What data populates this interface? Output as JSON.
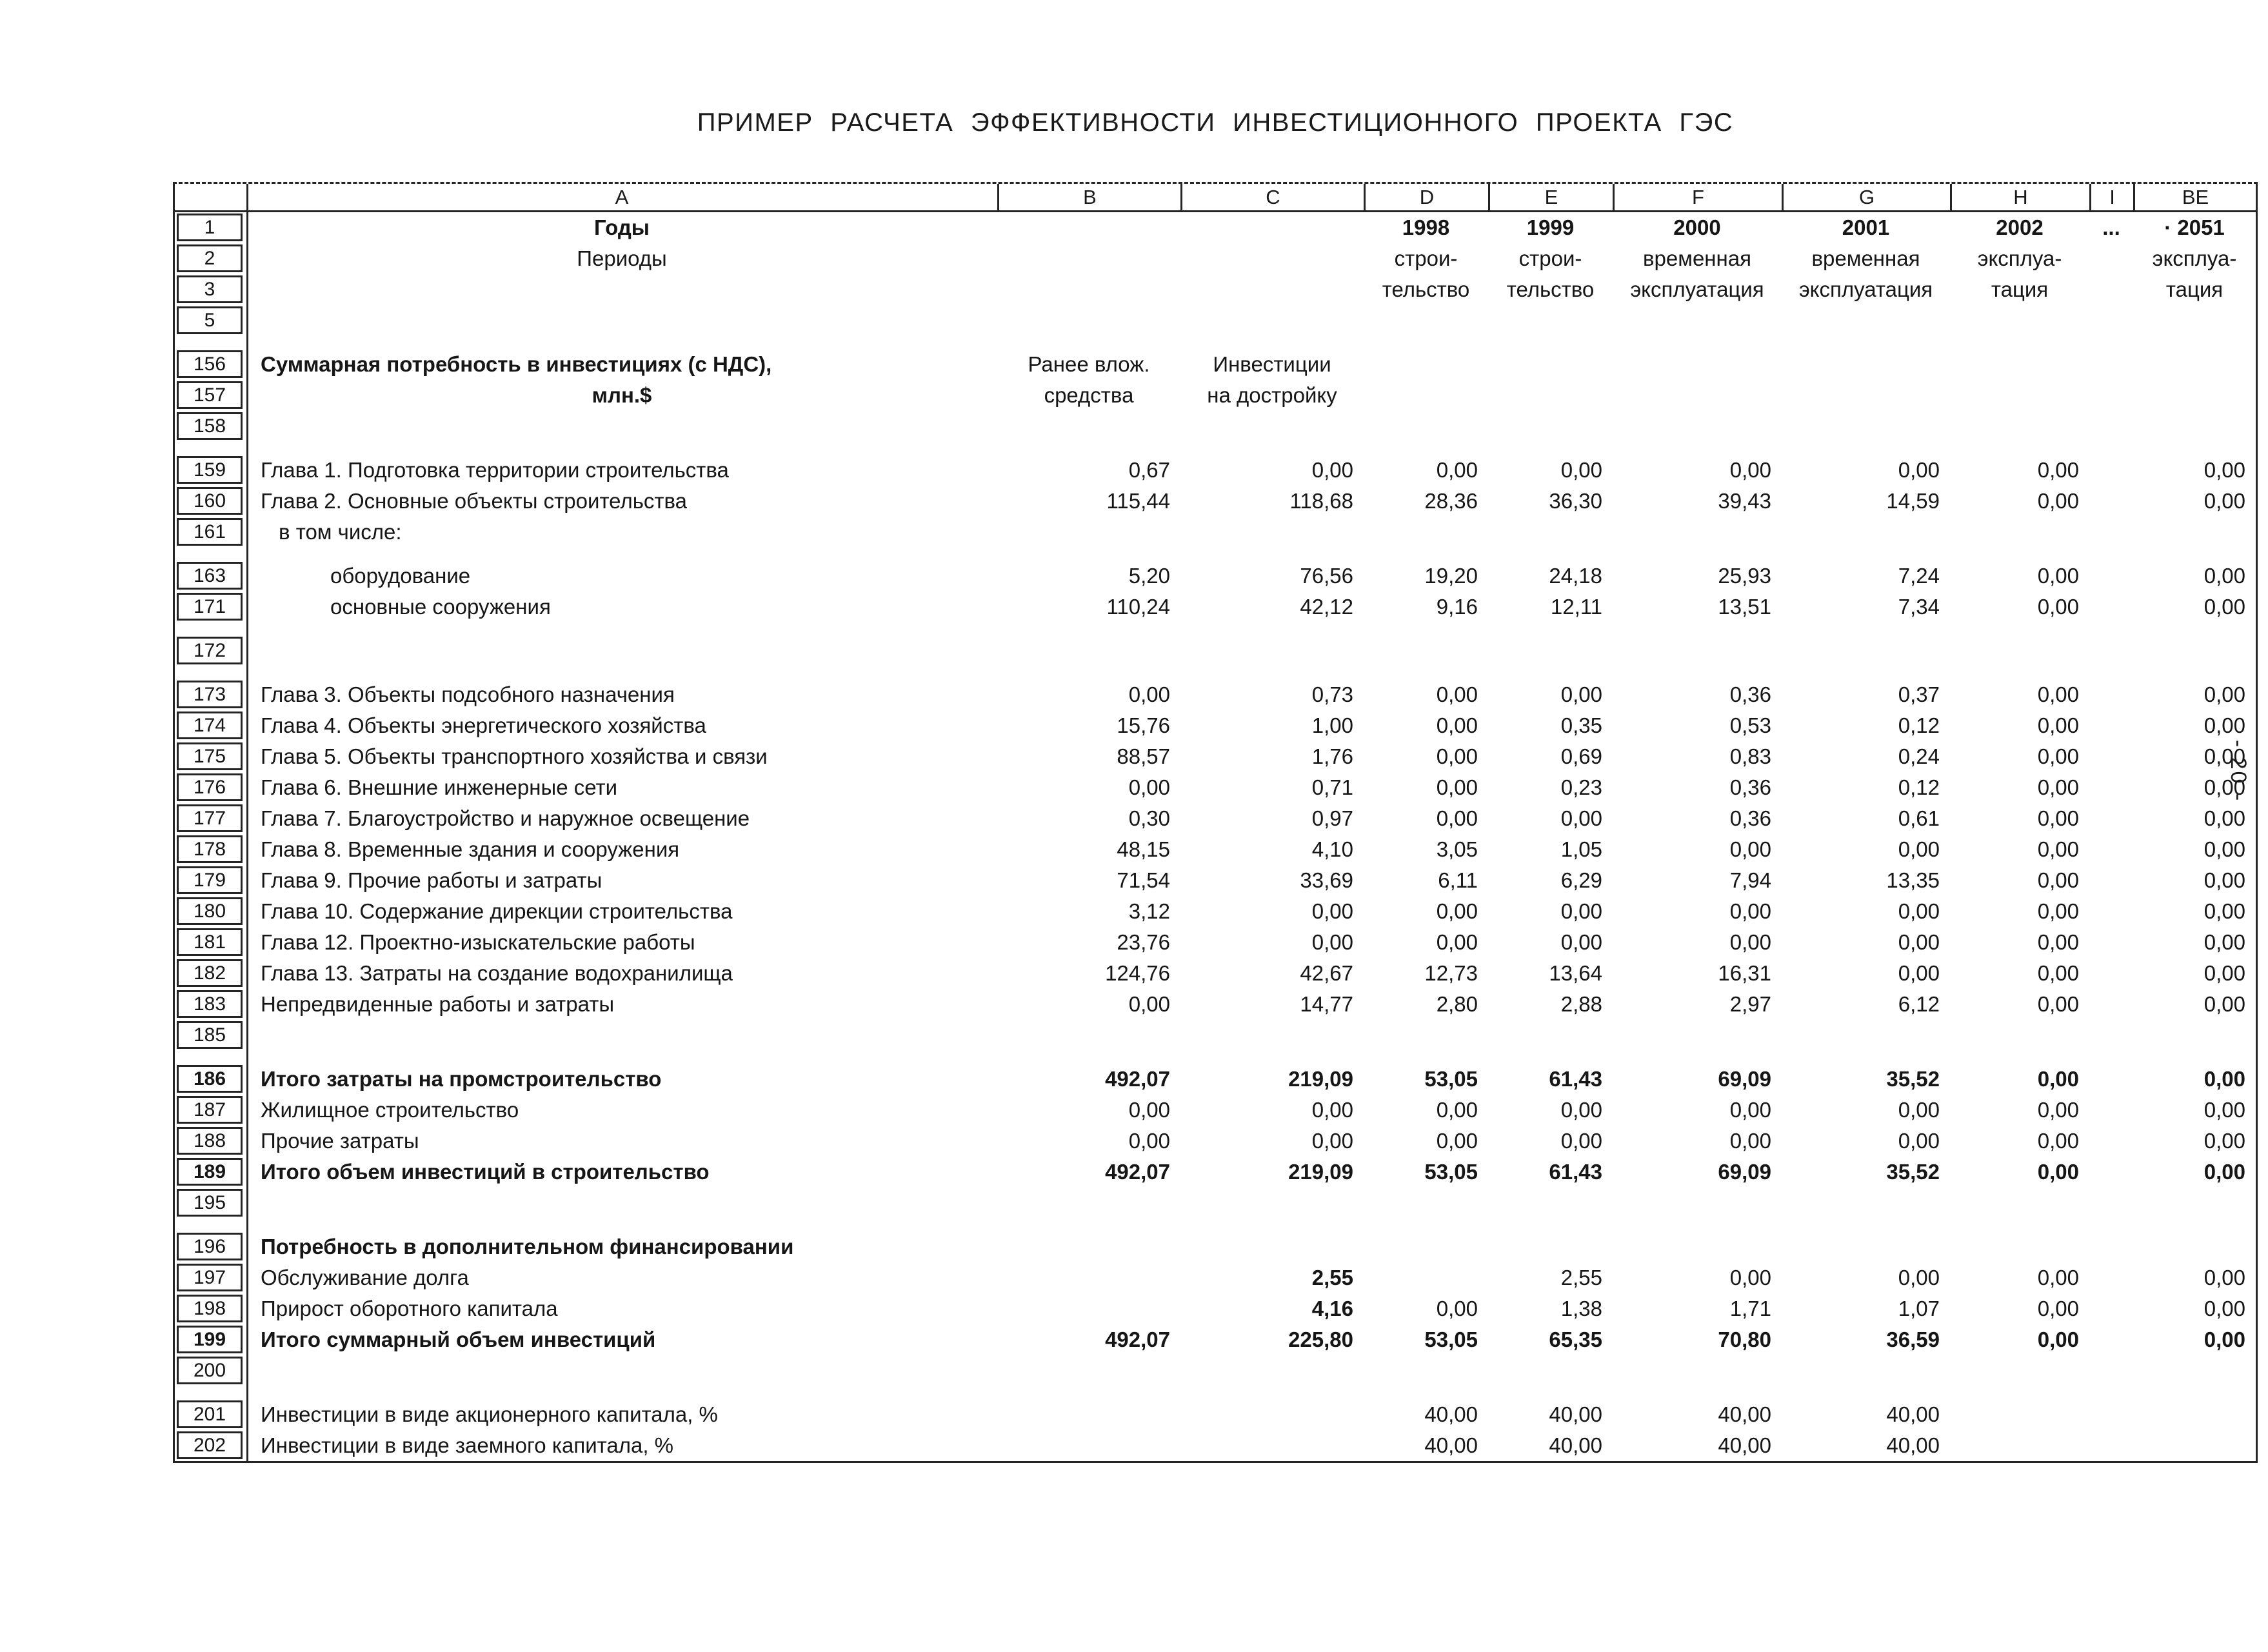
{
  "title": "ПРИМЕР РАСЧЕТА ЭФФЕКТИВНОСТИ ИНВЕСТИЦИОННОГО ПРОЕКТА ГЭС",
  "page_number_vertical": "- 20 -",
  "table": {
    "column_letters": [
      "A",
      "B",
      "C",
      "D",
      "E",
      "F",
      "G",
      "H",
      "I",
      "BE"
    ],
    "value_columns": [
      "B",
      "C",
      "D",
      "E",
      "F",
      "G",
      "H",
      "I",
      "BE"
    ],
    "rows": [
      {
        "num": "1",
        "label": "Годы",
        "label_align": "center",
        "label_bold": true,
        "values_align": "center",
        "values_bold": true,
        "values": {
          "D": "1998",
          "E": "1999",
          "F": "2000",
          "G": "2001",
          "H": "2002",
          "I": "...",
          "BE": "· 2051"
        }
      },
      {
        "num": "2",
        "label": "Периоды",
        "label_align": "center",
        "values_align": "center",
        "values": {
          "D": "строи-",
          "E": "строи-",
          "F": "временная",
          "G": "временная",
          "H": "эксплуа-",
          "BE": "эксплуа-"
        }
      },
      {
        "num": "3",
        "values_align": "center",
        "values": {
          "D": "тельство",
          "E": "тельство",
          "F": "эксплуатация",
          "G": "эксплуатация",
          "H": "тация",
          "BE": "тация"
        }
      },
      {
        "num": "5"
      },
      {
        "num": "156",
        "gap_before": true,
        "label": "Суммарная потребность в инвестициях (с НДС),",
        "label_bold": true,
        "values_align": "center",
        "values": {
          "B": "Ранее влож.",
          "C": "Инвестиции"
        }
      },
      {
        "num": "157",
        "label": "млн.$",
        "label_align": "center",
        "label_bold": true,
        "values_align": "center",
        "values": {
          "B": "средства",
          "C": "на достройку"
        }
      },
      {
        "num": "158"
      },
      {
        "num": "159",
        "gap_before": true,
        "label": "Глава 1. Подготовка территории строительства",
        "values": {
          "B": "0,67",
          "C": "0,00",
          "D": "0,00",
          "E": "0,00",
          "F": "0,00",
          "G": "0,00",
          "H": "0,00",
          "BE": "0,00"
        }
      },
      {
        "num": "160",
        "label": "Глава 2. Основные объекты строительства",
        "values": {
          "B": "115,44",
          "C": "118,68",
          "D": "28,36",
          "E": "36,30",
          "F": "39,43",
          "G": "14,59",
          "H": "0,00",
          "BE": "0,00"
        }
      },
      {
        "num": "161",
        "label": "в том числе:",
        "indent": 1
      },
      {
        "num": "163",
        "gap_before": true,
        "label": "оборудование",
        "indent": 2,
        "values": {
          "B": "5,20",
          "C": "76,56",
          "D": "19,20",
          "E": "24,18",
          "F": "25,93",
          "G": "7,24",
          "H": "0,00",
          "BE": "0,00"
        }
      },
      {
        "num": "171",
        "label": "основные сооружения",
        "indent": 2,
        "values": {
          "B": "110,24",
          "C": "42,12",
          "D": "9,16",
          "E": "12,11",
          "F": "13,51",
          "G": "7,34",
          "H": "0,00",
          "BE": "0,00"
        }
      },
      {
        "num": "172",
        "gap_before": true
      },
      {
        "num": "173",
        "gap_before": true,
        "label": "Глава 3. Объекты подсобного назначения",
        "values": {
          "B": "0,00",
          "C": "0,73",
          "D": "0,00",
          "E": "0,00",
          "F": "0,36",
          "G": "0,37",
          "H": "0,00",
          "BE": "0,00"
        }
      },
      {
        "num": "174",
        "label": "Глава 4. Объекты энергетического хозяйства",
        "values": {
          "B": "15,76",
          "C": "1,00",
          "D": "0,00",
          "E": "0,35",
          "F": "0,53",
          "G": "0,12",
          "H": "0,00",
          "BE": "0,00"
        }
      },
      {
        "num": "175",
        "label": "Глава 5. Объекты транспортного хозяйства и связи",
        "values": {
          "B": "88,57",
          "C": "1,76",
          "D": "0,00",
          "E": "0,69",
          "F": "0,83",
          "G": "0,24",
          "H": "0,00",
          "BE": "0,00"
        }
      },
      {
        "num": "176",
        "label": "Глава 6. Внешние инженерные сети",
        "values": {
          "B": "0,00",
          "C": "0,71",
          "D": "0,00",
          "E": "0,23",
          "F": "0,36",
          "G": "0,12",
          "H": "0,00",
          "BE": "0,00"
        }
      },
      {
        "num": "177",
        "label": "Глава 7. Благоустройство и наружное освещение",
        "values": {
          "B": "0,30",
          "C": "0,97",
          "D": "0,00",
          "E": "0,00",
          "F": "0,36",
          "G": "0,61",
          "H": "0,00",
          "BE": "0,00"
        }
      },
      {
        "num": "178",
        "label": "Глава 8. Временные здания и сооружения",
        "values": {
          "B": "48,15",
          "C": "4,10",
          "D": "3,05",
          "E": "1,05",
          "F": "0,00",
          "G": "0,00",
          "H": "0,00",
          "BE": "0,00"
        }
      },
      {
        "num": "179",
        "label": "Глава 9. Прочие работы и затраты",
        "values": {
          "B": "71,54",
          "C": "33,69",
          "D": "6,11",
          "E": "6,29",
          "F": "7,94",
          "G": "13,35",
          "H": "0,00",
          "BE": "0,00"
        }
      },
      {
        "num": "180",
        "label": "Глава 10. Содержание дирекции строительства",
        "values": {
          "B": "3,12",
          "C": "0,00",
          "D": "0,00",
          "E": "0,00",
          "F": "0,00",
          "G": "0,00",
          "H": "0,00",
          "BE": "0,00"
        }
      },
      {
        "num": "181",
        "label": "Глава 12. Проектно-изыскательские работы",
        "values": {
          "B": "23,76",
          "C": "0,00",
          "D": "0,00",
          "E": "0,00",
          "F": "0,00",
          "G": "0,00",
          "H": "0,00",
          "BE": "0,00"
        }
      },
      {
        "num": "182",
        "label": "Глава 13. Затраты на создание водохранилища",
        "values": {
          "B": "124,76",
          "C": "42,67",
          "D": "12,73",
          "E": "13,64",
          "F": "16,31",
          "G": "0,00",
          "H": "0,00",
          "BE": "0,00"
        }
      },
      {
        "num": "183",
        "label": "Непредвиденные работы и затраты",
        "values": {
          "B": "0,00",
          "C": "14,77",
          "D": "2,80",
          "E": "2,88",
          "F": "2,97",
          "G": "6,12",
          "H": "0,00",
          "BE": "0,00"
        }
      },
      {
        "num": "185"
      },
      {
        "num": "186",
        "gap_before": true,
        "label": "Итого затраты на промстроительство",
        "bold": true,
        "values": {
          "B": "492,07",
          "C": "219,09",
          "D": "53,05",
          "E": "61,43",
          "F": "69,09",
          "G": "35,52",
          "H": "0,00",
          "BE": "0,00"
        }
      },
      {
        "num": "187",
        "label": "Жилищное  строительство",
        "values": {
          "B": "0,00",
          "C": "0,00",
          "D": "0,00",
          "E": "0,00",
          "F": "0,00",
          "G": "0,00",
          "H": "0,00",
          "BE": "0,00"
        }
      },
      {
        "num": "188",
        "label": "Прочие затраты",
        "values": {
          "B": "0,00",
          "C": "0,00",
          "D": "0,00",
          "E": "0,00",
          "F": "0,00",
          "G": "0,00",
          "H": "0,00",
          "BE": "0,00"
        }
      },
      {
        "num": "189",
        "label": "Итого объем инвестиций в строительство",
        "bold": true,
        "values": {
          "B": "492,07",
          "C": "219,09",
          "D": "53,05",
          "E": "61,43",
          "F": "69,09",
          "G": "35,52",
          "H": "0,00",
          "BE": "0,00"
        }
      },
      {
        "num": "195"
      },
      {
        "num": "196",
        "gap_before": true,
        "label": "Потребность в дополнительном финансировании",
        "label_bold": true
      },
      {
        "num": "197",
        "label": "Обслуживание  долга",
        "bold_values": [
          "C"
        ],
        "values": {
          "C": "2,55",
          "E": "2,55",
          "F": "0,00",
          "G": "0,00",
          "H": "0,00",
          "BE": "0,00"
        }
      },
      {
        "num": "198",
        "label": "Прирост оборотного капитала",
        "bold_values": [
          "C"
        ],
        "values": {
          "C": "4,16",
          "D": "0,00",
          "E": "1,38",
          "F": "1,71",
          "G": "1,07",
          "H": "0,00",
          "BE": "0,00"
        }
      },
      {
        "num": "199",
        "label": "Итого суммарный объем инвестиций",
        "bold": true,
        "values": {
          "B": "492,07",
          "C": "225,80",
          "D": "53,05",
          "E": "65,35",
          "F": "70,80",
          "G": "36,59",
          "H": "0,00",
          "BE": "0,00"
        }
      },
      {
        "num": "200"
      },
      {
        "num": "201",
        "gap_before": true,
        "label": "Инвестиции в виде акционерного капитала, %",
        "values": {
          "D": "40,00",
          "E": "40,00",
          "F": "40,00",
          "G": "40,00"
        }
      },
      {
        "num": "202",
        "label": "Инвестиции в виде заемного капитала, %",
        "values": {
          "D": "40,00",
          "E": "40,00",
          "F": "40,00",
          "G": "40,00"
        }
      }
    ]
  }
}
